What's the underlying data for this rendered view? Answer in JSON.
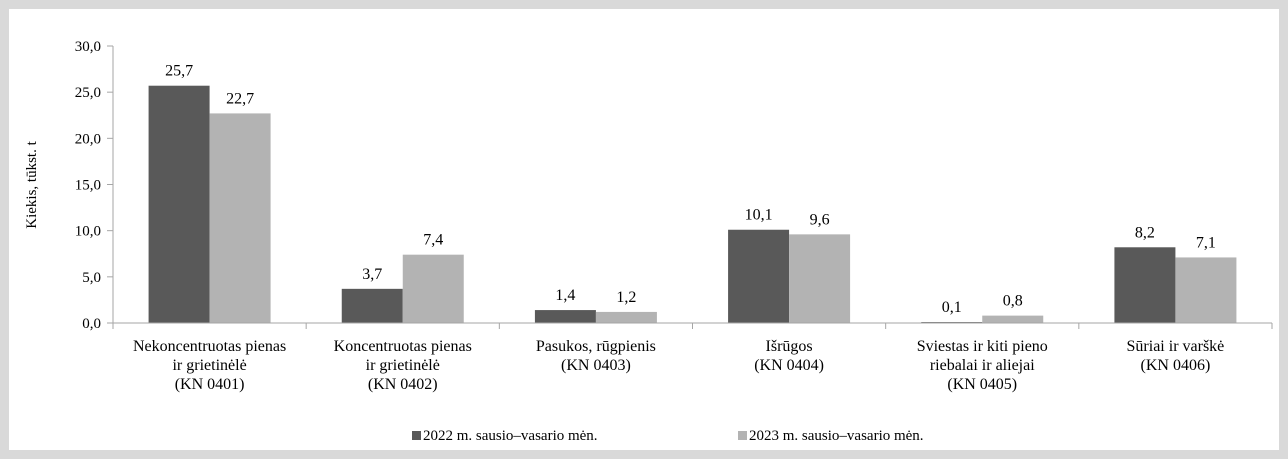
{
  "chart_data": {
    "type": "bar",
    "ylabel": "Kiekis, tūkst. t",
    "ylim": [
      0,
      30
    ],
    "yticks": [
      "0,0",
      "5,0",
      "10,0",
      "15,0",
      "20,0",
      "25,0",
      "30,0"
    ],
    "grid": false,
    "legend_position": "bottom",
    "categories": [
      [
        "Nekoncentruotas pienas",
        "ir grietinėlė",
        "(KN 0401)"
      ],
      [
        "Koncentruotas pienas",
        "ir grietinėlė",
        "(KN 0402)"
      ],
      [
        "Pasukos, rūgpienis",
        "(KN 0403)"
      ],
      [
        "Išrūgos",
        "(KN 0404)"
      ],
      [
        "Sviestas ir kiti pieno",
        "riebalai ir aliejai",
        "(KN 0405)"
      ],
      [
        "Sūriai ir varškė",
        "(KN 0406)"
      ]
    ],
    "series": [
      {
        "name": "2022 m. sausio–vasario mėn.",
        "color": "#595959",
        "values": [
          25.7,
          3.7,
          1.4,
          10.1,
          0.1,
          8.2
        ],
        "labels": [
          "25,7",
          "3,7",
          "1,4",
          "10,1",
          "0,1",
          "8,2"
        ]
      },
      {
        "name": "2023 m. sausio–vasario mėn.",
        "color": "#b3b3b3",
        "values": [
          22.7,
          7.4,
          1.2,
          9.6,
          0.8,
          7.1
        ],
        "labels": [
          "22,7",
          "7,4",
          "1,2",
          "9,6",
          "0,8",
          "7,1"
        ]
      }
    ]
  }
}
